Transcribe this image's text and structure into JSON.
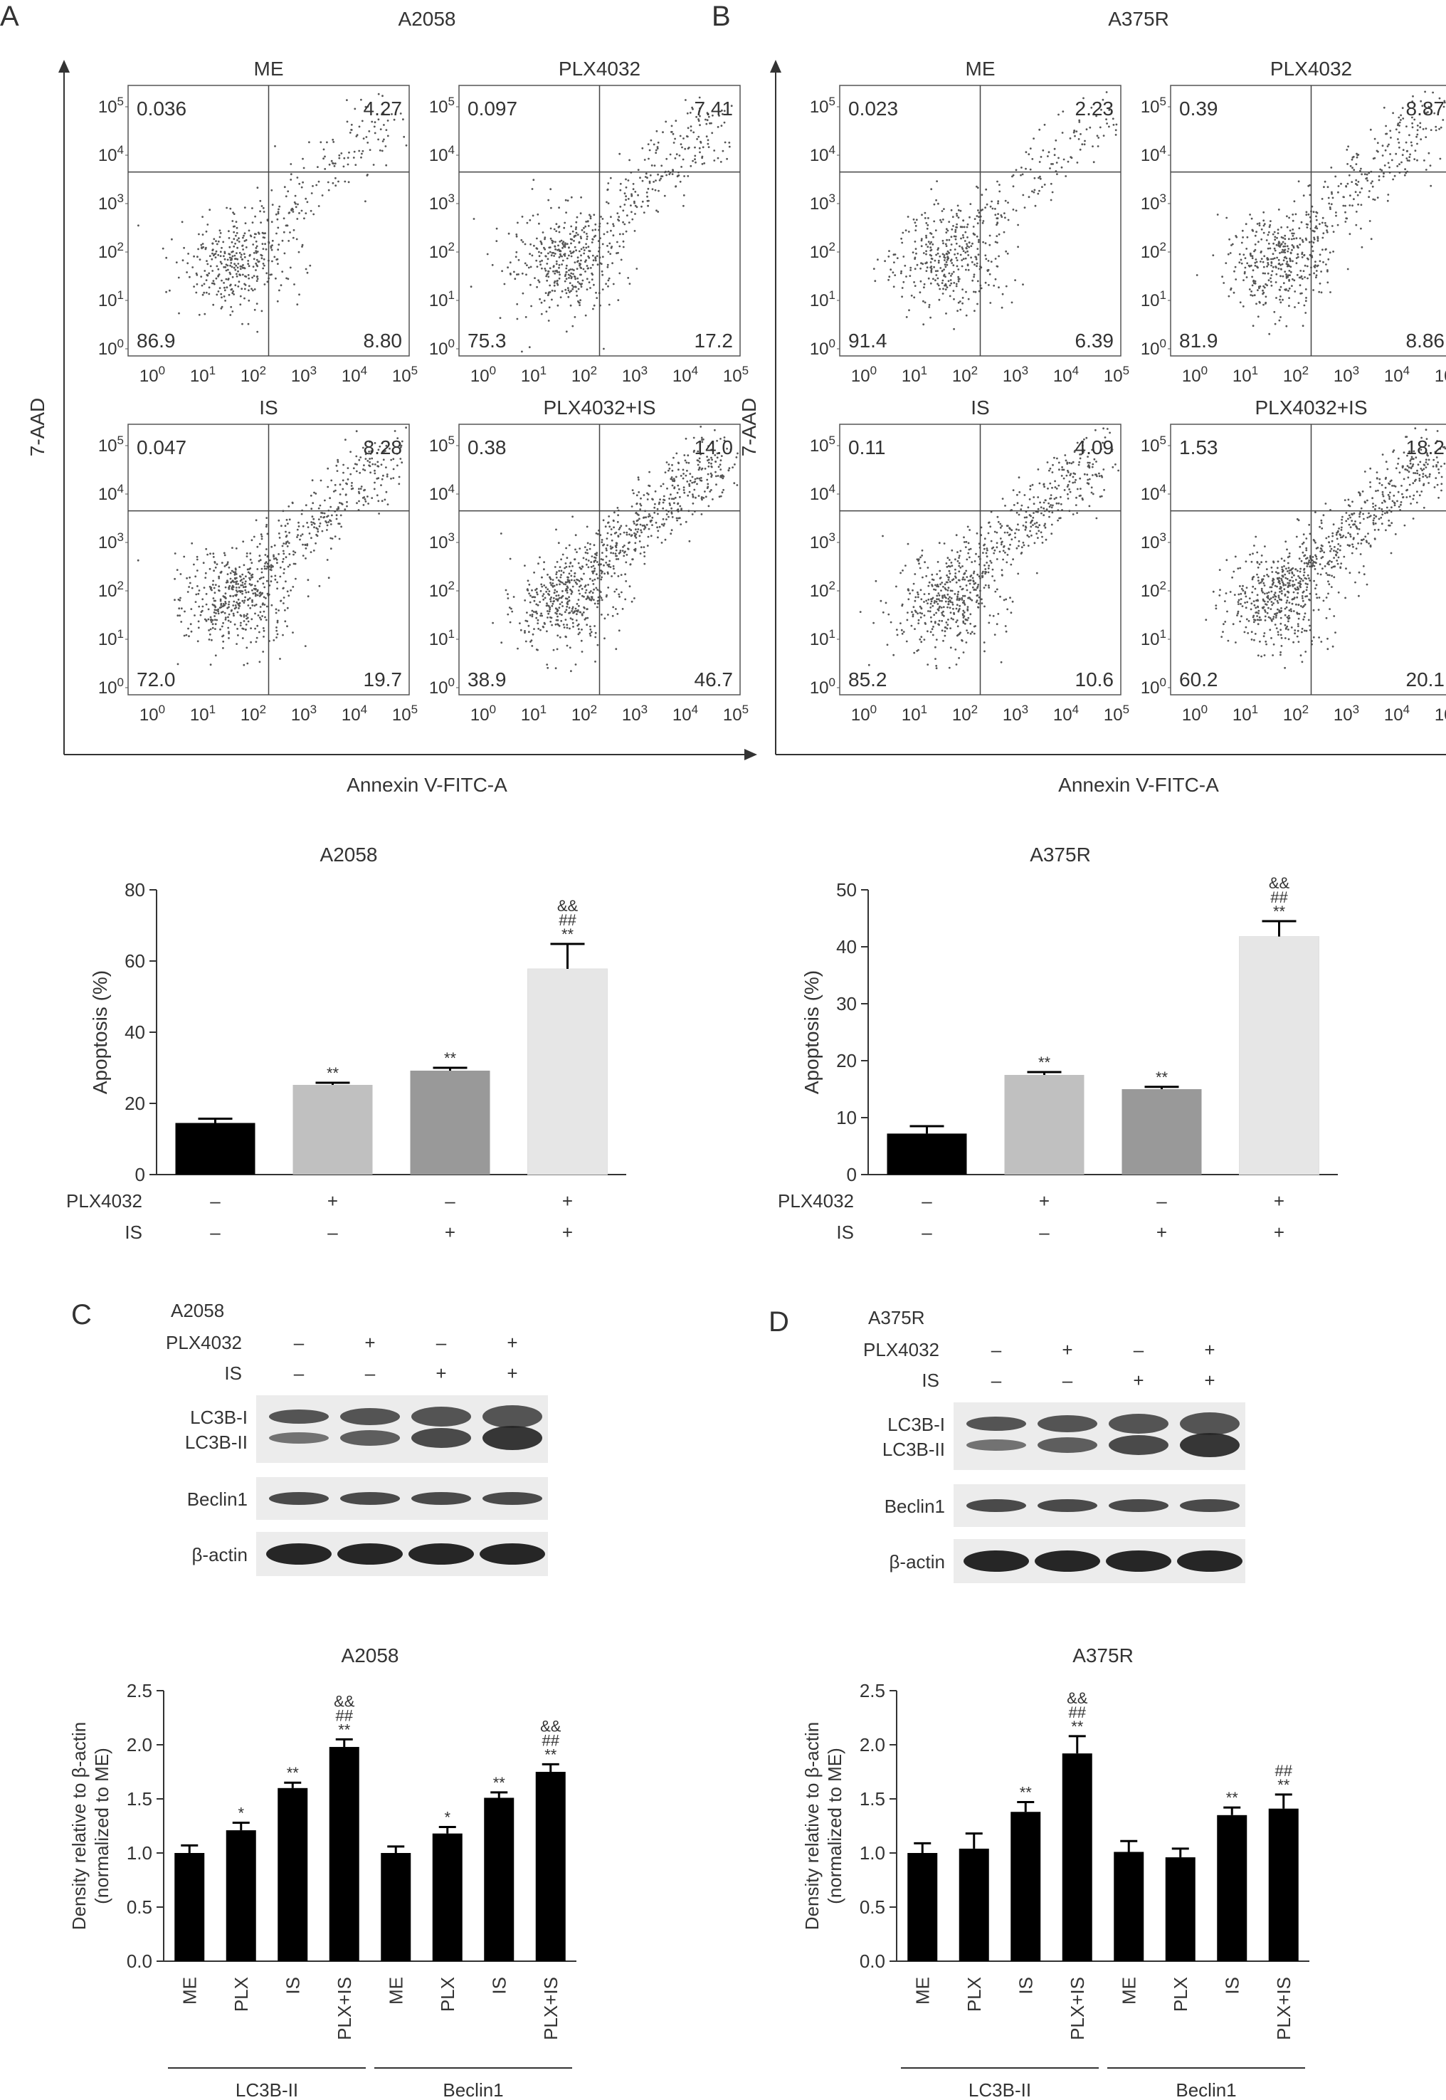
{
  "colors": {
    "bar_black": "#000000",
    "bar_lightgray": "#c0c0c0",
    "bar_gray": "#999999",
    "bar_verylight": "#e6e6e6",
    "axis": "#333333",
    "dots": "#555555"
  },
  "panelA": {
    "letter": "A",
    "title": "A2058",
    "ylabel": "7-AAD",
    "xlabel": "Annexin V-FITC-A",
    "plots": [
      {
        "label": "ME",
        "ul": "0.036",
        "ur": "4.27",
        "ll": "86.9",
        "lr": "8.80"
      },
      {
        "label": "PLX4032",
        "ul": "0.097",
        "ur": "7.41",
        "ll": "75.3",
        "lr": "17.2"
      },
      {
        "label": "IS",
        "ul": "0.047",
        "ur": "8.28",
        "ll": "72.0",
        "lr": "19.7"
      },
      {
        "label": "PLX4032+IS",
        "ul": "0.38",
        "ur": "14.0",
        "ll": "38.9",
        "lr": "46.7"
      }
    ]
  },
  "panelB": {
    "letter": "B",
    "title": "A375R",
    "ylabel": "7-AAD",
    "xlabel": "Annexin V-FITC-A",
    "plots": [
      {
        "label": "ME",
        "ul": "0.023",
        "ur": "2.23",
        "ll": "91.4",
        "lr": "6.39"
      },
      {
        "label": "PLX4032",
        "ul": "0.39",
        "ur": "8.87",
        "ll": "81.9",
        "lr": "8.86"
      },
      {
        "label": "IS",
        "ul": "0.11",
        "ur": "4.09",
        "ll": "85.2",
        "lr": "10.6"
      },
      {
        "label": "PLX4032+IS",
        "ul": "1.53",
        "ur": "18.2",
        "ll": "60.2",
        "lr": "20.1"
      }
    ]
  },
  "flow_ticks": {
    "y": [
      "10^0",
      "10^1",
      "10^2",
      "10^3",
      "10^4",
      "10^5"
    ],
    "x": [
      "10^0",
      "10^1",
      "10^2",
      "10^3",
      "10^4",
      "10^5"
    ]
  },
  "condition_rows": {
    "row1": "PLX4032",
    "row2": "IS",
    "row1_signs": [
      "–",
      "+",
      "–",
      "+"
    ],
    "row2_signs": [
      "–",
      "–",
      "+",
      "+"
    ]
  },
  "blots": {
    "C": {
      "letter": "C",
      "cell": "A2058",
      "bands": [
        "LC3B-I",
        "LC3B-II",
        "Beclin1",
        "β-actin"
      ]
    },
    "D": {
      "letter": "D",
      "cell": "A375R",
      "bands": [
        "LC3B-I",
        "LC3B-II",
        "Beclin1",
        "β-actin"
      ]
    }
  },
  "chart_data": [
    {
      "id": "apoptosis-a2058",
      "type": "bar",
      "title": "A2058",
      "ylabel": "Apoptosis (%)",
      "ylim": [
        0,
        80
      ],
      "yticks": [
        0,
        20,
        40,
        60,
        80
      ],
      "categories": [
        "ME",
        "PLX4032",
        "IS",
        "PLX4032+IS"
      ],
      "values": [
        14.5,
        25.2,
        29.2,
        57.8
      ],
      "errors": [
        1.2,
        0.6,
        0.8,
        7.0
      ],
      "significance": [
        [],
        [
          "**"
        ],
        [
          "**"
        ],
        [
          "&&",
          "##",
          "**"
        ]
      ],
      "bar_colors": [
        "#000000",
        "#c0c0c0",
        "#999999",
        "#e6e6e6"
      ]
    },
    {
      "id": "apoptosis-a375r",
      "type": "bar",
      "title": "A375R",
      "ylabel": "Apoptosis (%)",
      "ylim": [
        0,
        50
      ],
      "yticks": [
        0,
        10,
        20,
        30,
        40,
        50
      ],
      "categories": [
        "ME",
        "PLX4032",
        "IS",
        "PLX4032+IS"
      ],
      "values": [
        7.2,
        17.5,
        15.0,
        41.8
      ],
      "errors": [
        1.3,
        0.5,
        0.4,
        2.7
      ],
      "significance": [
        [],
        [
          "**"
        ],
        [
          "**"
        ],
        [
          "&&",
          "##",
          "**"
        ]
      ],
      "bar_colors": [
        "#000000",
        "#c0c0c0",
        "#999999",
        "#e6e6e6"
      ]
    },
    {
      "id": "density-a2058",
      "type": "bar",
      "title": "A2058",
      "ylabel": "Density relative to β-actin",
      "ylabel2": "(normalized to ME)",
      "ylim": [
        0,
        2.5
      ],
      "yticks": [
        "0.0",
        "0.5",
        "1.0",
        "1.5",
        "2.0",
        "2.5"
      ],
      "categories": [
        "ME",
        "PLX",
        "IS",
        "PLX+IS",
        "ME",
        "PLX",
        "IS",
        "PLX+IS"
      ],
      "groups": [
        "LC3B-II",
        "Beclin1"
      ],
      "values": [
        1.0,
        1.21,
        1.6,
        1.98,
        1.0,
        1.18,
        1.51,
        1.75
      ],
      "errors": [
        0.07,
        0.07,
        0.05,
        0.07,
        0.06,
        0.06,
        0.05,
        0.07
      ],
      "significance": [
        [],
        [
          "*"
        ],
        [
          "**"
        ],
        [
          "&&",
          "##",
          "**"
        ],
        [],
        [
          "*"
        ],
        [
          "**"
        ],
        [
          "&&",
          "##",
          "**"
        ]
      ]
    },
    {
      "id": "density-a375r",
      "type": "bar",
      "title": "A375R",
      "ylabel": "Density relative to β-actin",
      "ylabel2": "(normalized to ME)",
      "ylim": [
        0,
        2.5
      ],
      "yticks": [
        "0.0",
        "0.5",
        "1.0",
        "1.5",
        "2.0",
        "2.5"
      ],
      "categories": [
        "ME",
        "PLX",
        "IS",
        "PLX+IS",
        "ME",
        "PLX",
        "IS",
        "PLX+IS"
      ],
      "groups": [
        "LC3B-II",
        "Beclin1"
      ],
      "values": [
        1.0,
        1.04,
        1.38,
        1.92,
        1.01,
        0.96,
        1.35,
        1.41
      ],
      "errors": [
        0.09,
        0.14,
        0.09,
        0.16,
        0.1,
        0.08,
        0.07,
        0.13
      ],
      "significance": [
        [],
        [],
        [
          "**"
        ],
        [
          "&&",
          "##",
          "**"
        ],
        [],
        [],
        [
          "**"
        ],
        [
          "##",
          "**"
        ]
      ]
    }
  ]
}
